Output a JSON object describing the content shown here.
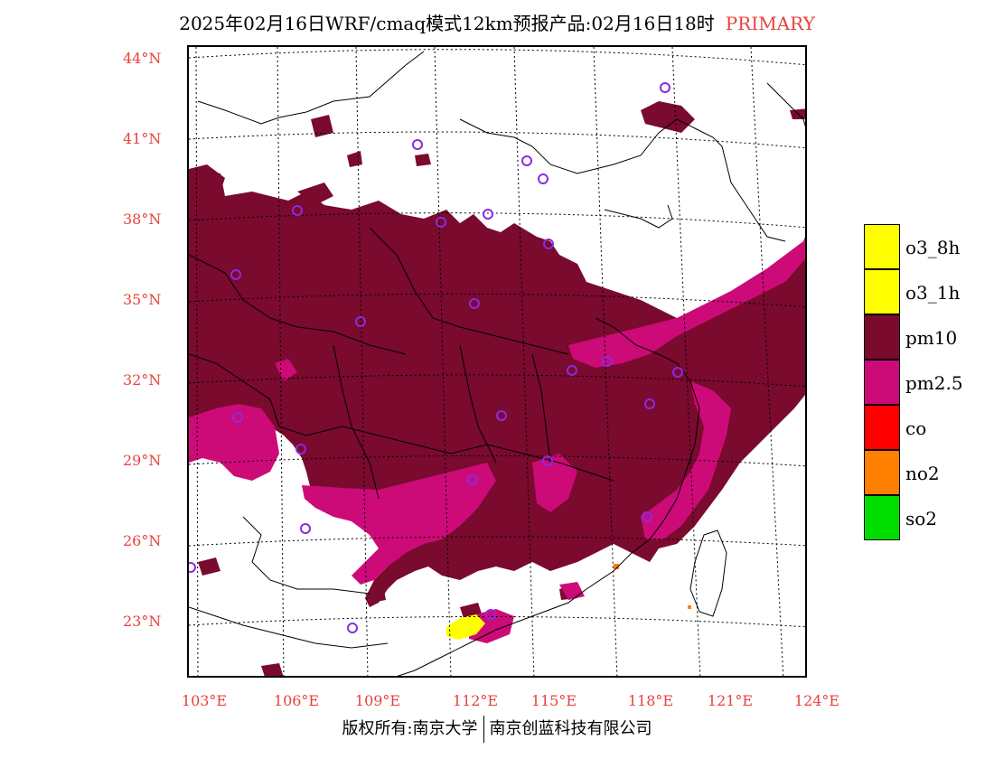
{
  "title": {
    "main": "2025年02月16日WRF/cmaq模式12km预报产品:02月16日18时",
    "tag": "PRIMARY"
  },
  "map": {
    "lat_labels": [
      "44°N",
      "41°N",
      "38°N",
      "35°N",
      "32°N",
      "29°N",
      "26°N",
      "23°N"
    ],
    "lon_labels": [
      "103°E",
      "106°E",
      "109°E",
      "112°E",
      "115°E",
      "118°E",
      "121°E",
      "124°E"
    ]
  },
  "legend": {
    "items": [
      {
        "label": "o3_8h",
        "color": "#ffff00"
      },
      {
        "label": "o3_1h",
        "color": "#ffff00"
      },
      {
        "label": "pm10",
        "color": "#7a0a2e"
      },
      {
        "label": "pm2.5",
        "color": "#cc0a78"
      },
      {
        "label": "co",
        "color": "#ff0000"
      },
      {
        "label": "no2",
        "color": "#ff7f00"
      },
      {
        "label": "so2",
        "color": "#00dd00"
      }
    ]
  },
  "footer": {
    "left": "版权所有:南京大学",
    "right": "南京创蓝科技有限公司"
  }
}
